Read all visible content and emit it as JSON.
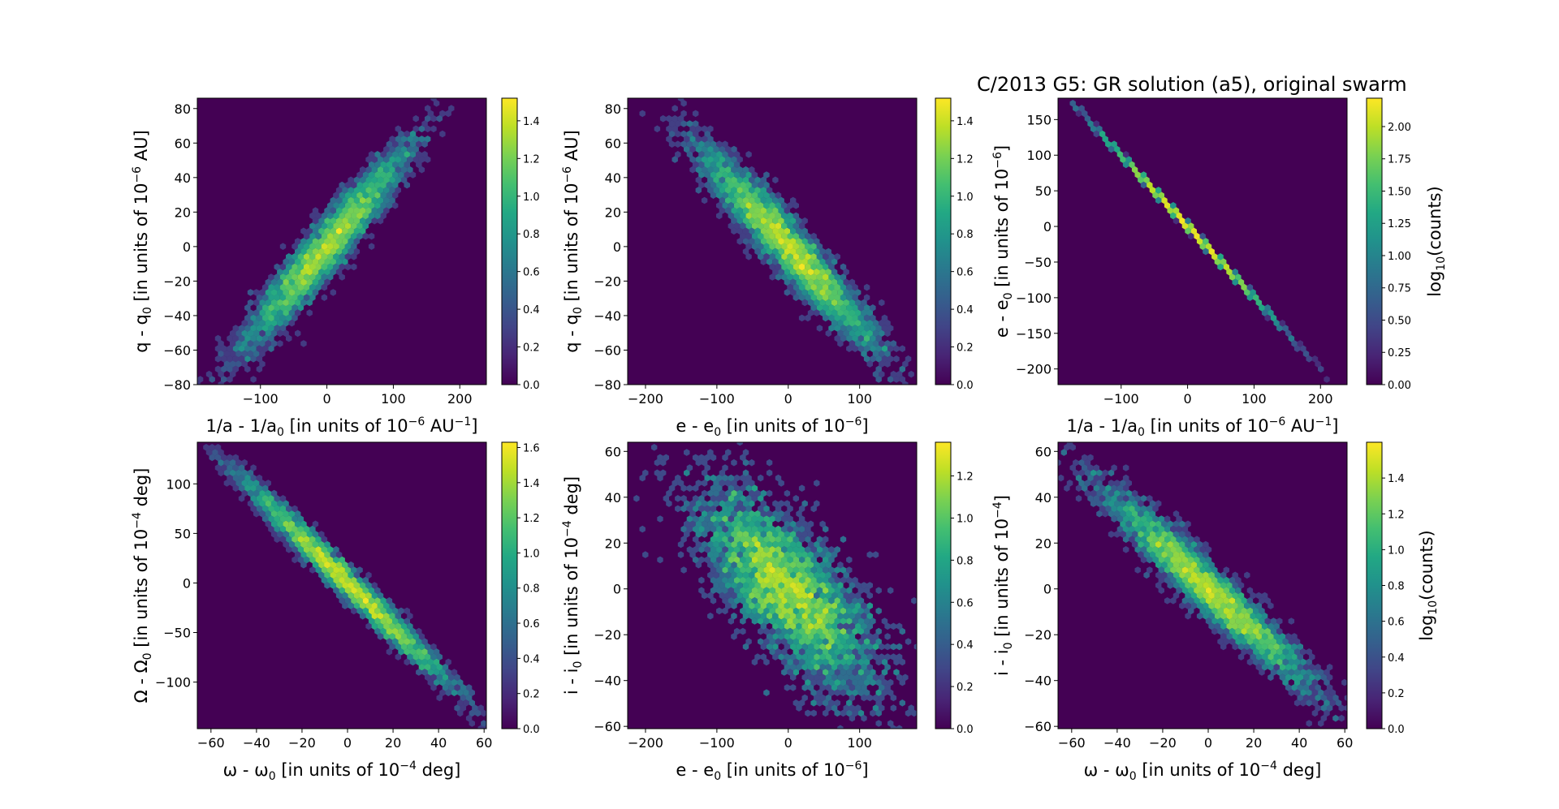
{
  "figure": {
    "suptitle": "C/2013 G5: GR solution (a5), original swarm"
  },
  "chart_data": [
    {
      "type": "heatmap",
      "subtype": "hexbin",
      "xlabel": "1/a - 1/a0 [in units of 10^-6 AU^-1]",
      "ylabel": "q - q0 [in units of 10^-6 AU]",
      "xlim": [
        -195,
        240
      ],
      "ylim": [
        -80,
        86
      ],
      "xticks": [
        -100,
        0,
        100,
        200
      ],
      "xtick_labels": [
        "−100",
        "0",
        "100",
        "200"
      ],
      "yticks": [
        -80,
        -60,
        -40,
        -20,
        0,
        20,
        40,
        60,
        80
      ],
      "ytick_labels": [
        "−80",
        "−60",
        "−40",
        "−20",
        "0",
        "20",
        "40",
        "60",
        "80"
      ],
      "colorbar": {
        "min": 0,
        "max": 1.52,
        "ticks": [
          0,
          0.2,
          0.4,
          0.6,
          0.8,
          1.0,
          1.2,
          1.4
        ],
        "tick_labels": [
          "0.0",
          "0.2",
          "0.4",
          "0.6",
          "0.8",
          "1.0",
          "1.2",
          "1.4"
        ],
        "label": ""
      },
      "distribution": {
        "cx": 0,
        "cy": 0,
        "sx": 60,
        "sy": 28,
        "rho": 0.95,
        "n": 4200,
        "peak": 1.5
      },
      "colormap": "viridis",
      "background": "#440154"
    },
    {
      "type": "heatmap",
      "subtype": "hexbin",
      "xlabel": "e - e0 [in units of 10^-6]",
      "ylabel": "q - q0 [in units of 10^-6 AU]",
      "xlim": [
        -225,
        180
      ],
      "ylim": [
        -80,
        86
      ],
      "xticks": [
        -200,
        -100,
        0,
        100
      ],
      "xtick_labels": [
        "−200",
        "−100",
        "0",
        "100"
      ],
      "yticks": [
        -80,
        -60,
        -40,
        -20,
        0,
        20,
        40,
        60,
        80
      ],
      "ytick_labels": [
        "−80",
        "−60",
        "−40",
        "−20",
        "0",
        "20",
        "40",
        "60",
        "80"
      ],
      "colorbar": {
        "min": 0,
        "max": 1.52,
        "ticks": [
          0,
          0.2,
          0.4,
          0.6,
          0.8,
          1.0,
          1.2,
          1.4
        ],
        "tick_labels": [
          "0.0",
          "0.2",
          "0.4",
          "0.6",
          "0.8",
          "1.0",
          "1.2",
          "1.4"
        ],
        "label": ""
      },
      "distribution": {
        "cx": 0,
        "cy": 0,
        "sx": 60,
        "sy": 28,
        "rho": -0.95,
        "n": 4200,
        "peak": 1.5
      },
      "colormap": "viridis",
      "background": "#440154"
    },
    {
      "type": "heatmap",
      "subtype": "hexbin",
      "xlabel": "1/a - 1/a0 [in units of 10^-6 AU^-1]",
      "ylabel": "e - e0 [in units of 10^-6]",
      "xlim": [
        -195,
        240
      ],
      "ylim": [
        -222,
        180
      ],
      "xticks": [
        -100,
        0,
        100,
        200
      ],
      "xtick_labels": [
        "−100",
        "0",
        "100",
        "200"
      ],
      "yticks": [
        -200,
        -150,
        -100,
        -50,
        0,
        50,
        100,
        150
      ],
      "ytick_labels": [
        "−200",
        "−150",
        "−100",
        "−50",
        "0",
        "50",
        "100",
        "150"
      ],
      "colorbar": {
        "min": 0,
        "max": 2.22,
        "ticks": [
          0,
          0.25,
          0.5,
          0.75,
          1.0,
          1.25,
          1.5,
          1.75,
          2.0
        ],
        "tick_labels": [
          "0.00",
          "0.25",
          "0.50",
          "0.75",
          "1.00",
          "1.25",
          "1.50",
          "1.75",
          "2.00"
        ],
        "label": "log10(counts)"
      },
      "distribution": {
        "cx": 0,
        "cy": 0,
        "sx": 60,
        "sy": 60,
        "rho": -0.9999,
        "n": 4200,
        "peak": 2.2
      },
      "colormap": "viridis",
      "background": "#440154"
    },
    {
      "type": "heatmap",
      "subtype": "hexbin",
      "xlabel": "ω - ω0 [in units of 10^-4 deg]",
      "ylabel": "Ω - Ω0 [in units of 10^-4 deg]",
      "xlim": [
        -66,
        61
      ],
      "ylim": [
        -147,
        142
      ],
      "xticks": [
        -60,
        -40,
        -20,
        0,
        20,
        40,
        60
      ],
      "xtick_labels": [
        "−60",
        "−40",
        "−20",
        "0",
        "20",
        "40",
        "60"
      ],
      "yticks": [
        -100,
        -50,
        0,
        50,
        100
      ],
      "ytick_labels": [
        "−100",
        "−50",
        "0",
        "50",
        "100"
      ],
      "colorbar": {
        "min": 0,
        "max": 1.63,
        "ticks": [
          0,
          0.2,
          0.4,
          0.6,
          0.8,
          1.0,
          1.2,
          1.4,
          1.6
        ],
        "tick_labels": [
          "0.0",
          "0.2",
          "0.4",
          "0.6",
          "0.8",
          "1.0",
          "1.2",
          "1.4",
          "1.6"
        ],
        "label": ""
      },
      "distribution": {
        "cx": 0,
        "cy": 0,
        "sx": 22,
        "sy": 50,
        "rho": -0.985,
        "n": 4200,
        "peak": 1.6
      },
      "colormap": "viridis",
      "background": "#440154"
    },
    {
      "type": "heatmap",
      "subtype": "hexbin",
      "xlabel": "e - e0 [in units of 10^-6]",
      "ylabel": "i - i0 [in units of 10^-4 deg]",
      "xlim": [
        -225,
        180
      ],
      "ylim": [
        -61,
        64
      ],
      "xticks": [
        -200,
        -100,
        0,
        100
      ],
      "xtick_labels": [
        "−200",
        "−100",
        "0",
        "100"
      ],
      "yticks": [
        -60,
        -40,
        -20,
        0,
        20,
        40,
        60
      ],
      "ytick_labels": [
        "−60",
        "−40",
        "−20",
        "0",
        "20",
        "40",
        "60"
      ],
      "colorbar": {
        "min": 0,
        "max": 1.36,
        "ticks": [
          0,
          0.2,
          0.4,
          0.6,
          0.8,
          1.0,
          1.2
        ],
        "tick_labels": [
          "0.0",
          "0.2",
          "0.4",
          "0.6",
          "0.8",
          "1.0",
          "1.2"
        ],
        "label": ""
      },
      "distribution": {
        "cx": 0,
        "cy": 0,
        "sx": 60,
        "sy": 21,
        "rho": -0.7,
        "n": 4200,
        "peak": 1.3
      },
      "colormap": "viridis",
      "background": "#440154"
    },
    {
      "type": "heatmap",
      "subtype": "hexbin",
      "xlabel": "ω - ω0 [in units of 10^-4 deg]",
      "ylabel": "i - i0 [in units of 10^-4]",
      "xlim": [
        -66,
        61
      ],
      "ylim": [
        -61,
        64
      ],
      "xticks": [
        -60,
        -40,
        -20,
        0,
        20,
        40,
        60
      ],
      "xtick_labels": [
        "−60",
        "−40",
        "−20",
        "0",
        "20",
        "40",
        "60"
      ],
      "yticks": [
        -60,
        -40,
        -20,
        0,
        20,
        40,
        60
      ],
      "ytick_labels": [
        "−60",
        "−40",
        "−20",
        "0",
        "20",
        "40",
        "60"
      ],
      "colorbar": {
        "min": 0,
        "max": 1.6,
        "ticks": [
          0,
          0.2,
          0.4,
          0.6,
          0.8,
          1.0,
          1.2,
          1.4
        ],
        "tick_labels": [
          "0.0",
          "0.2",
          "0.4",
          "0.6",
          "0.8",
          "1.0",
          "1.2",
          "1.4"
        ],
        "label": "log10(counts)"
      },
      "distribution": {
        "cx": 0,
        "cy": 0,
        "sx": 22,
        "sy": 21,
        "rho": -0.96,
        "n": 4200,
        "peak": 1.55
      },
      "colormap": "viridis",
      "background": "#440154"
    }
  ]
}
